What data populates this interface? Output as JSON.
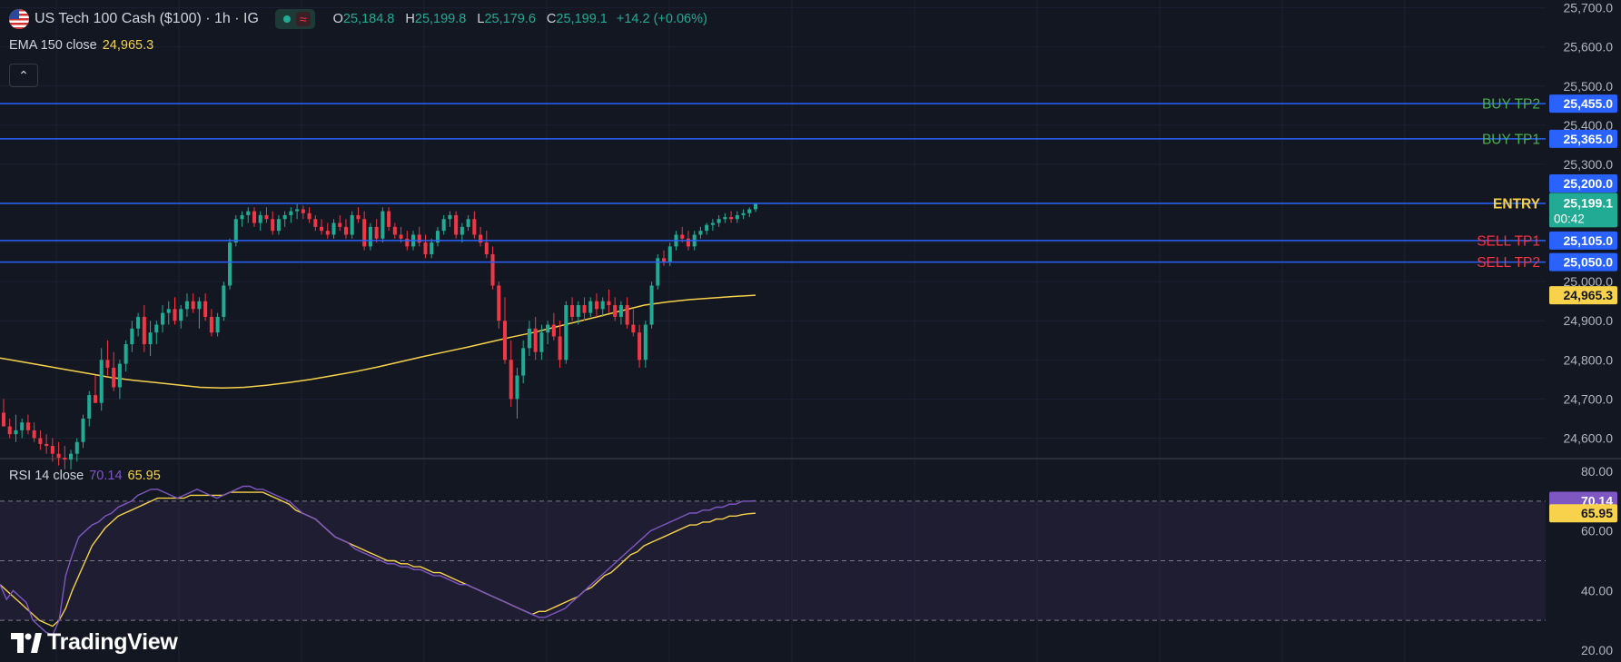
{
  "header": {
    "symbol": "US Tech 100 Cash ($100) · 1h · IG",
    "ohlc": [
      {
        "key": "O",
        "value": "25,184.8"
      },
      {
        "key": "H",
        "value": "25,199.8"
      },
      {
        "key": "L",
        "value": "25,179.6"
      },
      {
        "key": "C",
        "value": "25,199.1"
      }
    ],
    "change": "+14.2 (+0.06%)",
    "wave_icon": "≈",
    "collapse_icon": "⌃"
  },
  "ema": {
    "label": "EMA 150 close",
    "value": "24,965.3"
  },
  "rsi": {
    "label": "RSI 14 close",
    "value": "70.14",
    "ma_value": "65.95"
  },
  "brand": "TradingView",
  "colors": {
    "background": "#131722",
    "up": "#22ab94",
    "down": "#f23645",
    "ema": "#f7d24a",
    "rsi": "#7e57c2",
    "level_line": "#2962ff",
    "buy": "#4caf50",
    "sell": "#f23645",
    "entry": "#f7d24a"
  },
  "chart_data": [
    {
      "type": "candlestick",
      "timeframe": "1h",
      "ylim": [
        24550,
        25720
      ],
      "y_ticks": [
        "25,700.0",
        "25,600.0",
        "25,500.0",
        "25,400.0",
        "25,300.0",
        "25,200.0",
        "25,100.0",
        "25,000.0",
        "24,900.0",
        "24,800.0",
        "24,700.0",
        "24,600.0"
      ],
      "y_tick_values": [
        25700,
        25600,
        25500,
        25400,
        25300,
        25200,
        25100,
        25000,
        24900,
        24800,
        24700,
        24600
      ],
      "last_price": {
        "value": 25199.1,
        "label": "25,199.1",
        "countdown": "00:42"
      },
      "levels": [
        {
          "name": "BUY TP2",
          "value": 25455.0,
          "label": "25,455.0",
          "kind": "buy"
        },
        {
          "name": "BUY TP1",
          "value": 25365.0,
          "label": "25,365.0",
          "kind": "buy"
        },
        {
          "name": "ENTRY",
          "value": 25200.0,
          "label": "25,200.0",
          "kind": "entry"
        },
        {
          "name": "SELL TP1",
          "value": 25105.0,
          "label": "25,105.0",
          "kind": "sell"
        },
        {
          "name": "SELL TP2",
          "value": 25050.0,
          "label": "25,050.0",
          "kind": "sell"
        }
      ],
      "ema_last": {
        "value": 24965.3,
        "label": "24,965.3"
      },
      "candles": [
        [
          24665,
          24700,
          24640,
          24630
        ],
        [
          24630,
          24650,
          24600,
          24610
        ],
        [
          24610,
          24660,
          24590,
          24620
        ],
        [
          24620,
          24650,
          24600,
          24640
        ],
        [
          24640,
          24660,
          24610,
          24620
        ],
        [
          24620,
          24640,
          24590,
          24600
        ],
        [
          24600,
          24620,
          24570,
          24585
        ],
        [
          24585,
          24610,
          24560,
          24580
        ],
        [
          24580,
          24600,
          24540,
          24560
        ],
        [
          24560,
          24590,
          24530,
          24550
        ],
        [
          24550,
          24580,
          24520,
          24545
        ],
        [
          24545,
          24570,
          24520,
          24560
        ],
        [
          24560,
          24600,
          24540,
          24590
        ],
        [
          24590,
          24660,
          24575,
          24650
        ],
        [
          24650,
          24720,
          24630,
          24710
        ],
        [
          24710,
          24760,
          24690,
          24690
        ],
        [
          24690,
          24830,
          24670,
          24800
        ],
        [
          24800,
          24850,
          24760,
          24780
        ],
        [
          24780,
          24820,
          24720,
          24730
        ],
        [
          24730,
          24800,
          24700,
          24790
        ],
        [
          24790,
          24850,
          24770,
          24840
        ],
        [
          24840,
          24900,
          24820,
          24880
        ],
        [
          24880,
          24920,
          24860,
          24910
        ],
        [
          24910,
          24940,
          24820,
          24840
        ],
        [
          24840,
          24900,
          24810,
          24870
        ],
        [
          24870,
          24900,
          24840,
          24890
        ],
        [
          24890,
          24940,
          24870,
          24920
        ],
        [
          24920,
          24950,
          24890,
          24930
        ],
        [
          24930,
          24960,
          24890,
          24900
        ],
        [
          24900,
          24940,
          24880,
          24930
        ],
        [
          24930,
          24970,
          24910,
          24950
        ],
        [
          24950,
          24970,
          24920,
          24930
        ],
        [
          24930,
          24960,
          24880,
          24950
        ],
        [
          24950,
          24970,
          24900,
          24910
        ],
        [
          24910,
          24930,
          24860,
          24870
        ],
        [
          24870,
          24920,
          24860,
          24910
        ],
        [
          24910,
          25000,
          24900,
          24990
        ],
        [
          24990,
          25110,
          24980,
          25100
        ],
        [
          25100,
          25170,
          25090,
          25160
        ],
        [
          25160,
          25180,
          25140,
          25170
        ],
        [
          25170,
          25190,
          25150,
          25180
        ],
        [
          25180,
          25190,
          25140,
          25150
        ],
        [
          25150,
          25180,
          25130,
          25170
        ],
        [
          25170,
          25190,
          25150,
          25160
        ],
        [
          25160,
          25180,
          25120,
          25130
        ],
        [
          25130,
          25170,
          25120,
          25160
        ],
        [
          25160,
          25180,
          25140,
          25170
        ],
        [
          25170,
          25190,
          25150,
          25180
        ],
        [
          25180,
          25200,
          25160,
          25185
        ],
        [
          25185,
          25195,
          25160,
          25175
        ],
        [
          25175,
          25190,
          25150,
          25160
        ],
        [
          25160,
          25170,
          25130,
          25140
        ],
        [
          25140,
          25160,
          25120,
          25130
        ],
        [
          25130,
          25150,
          25110,
          25120
        ],
        [
          25120,
          25160,
          25110,
          25150
        ],
        [
          25150,
          25170,
          25130,
          25140
        ],
        [
          25140,
          25160,
          25110,
          25120
        ],
        [
          25120,
          25180,
          25110,
          25170
        ],
        [
          25170,
          25190,
          25150,
          25160
        ],
        [
          25160,
          25180,
          25080,
          25090
        ],
        [
          25090,
          25150,
          25080,
          25140
        ],
        [
          25140,
          25160,
          25100,
          25110
        ],
        [
          25110,
          25190,
          25100,
          25180
        ],
        [
          25180,
          25190,
          25130,
          25140
        ],
        [
          25140,
          25150,
          25110,
          25120
        ],
        [
          25120,
          25140,
          25100,
          25110
        ],
        [
          25110,
          25130,
          25080,
          25090
        ],
        [
          25090,
          25130,
          25080,
          25120
        ],
        [
          25120,
          25140,
          25090,
          25100
        ],
        [
          25100,
          25120,
          25060,
          25070
        ],
        [
          25070,
          25110,
          25060,
          25100
        ],
        [
          25100,
          25140,
          25090,
          25130
        ],
        [
          25130,
          25170,
          25120,
          25160
        ],
        [
          25160,
          25180,
          25140,
          25170
        ],
        [
          25170,
          25180,
          25110,
          25120
        ],
        [
          25120,
          25150,
          25100,
          25140
        ],
        [
          25140,
          25170,
          25130,
          25160
        ],
        [
          25160,
          25180,
          25110,
          25120
        ],
        [
          25120,
          25140,
          25090,
          25100
        ],
        [
          25100,
          25130,
          25060,
          25070
        ],
        [
          25070,
          25090,
          24980,
          24990
        ],
        [
          24990,
          25000,
          24880,
          24900
        ],
        [
          24900,
          24960,
          24790,
          24800
        ],
        [
          24800,
          24850,
          24680,
          24700
        ],
        [
          24700,
          24780,
          24650,
          24760
        ],
        [
          24760,
          24850,
          24740,
          24830
        ],
        [
          24830,
          24900,
          24810,
          24880
        ],
        [
          24880,
          24910,
          24800,
          24820
        ],
        [
          24820,
          24890,
          24800,
          24870
        ],
        [
          24870,
          24900,
          24840,
          24890
        ],
        [
          24890,
          24920,
          24850,
          24860
        ],
        [
          24860,
          24900,
          24780,
          24800
        ],
        [
          24800,
          24950,
          24790,
          24940
        ],
        [
          24940,
          24960,
          24900,
          24910
        ],
        [
          24910,
          24950,
          24890,
          24940
        ],
        [
          24940,
          24960,
          24900,
          24920
        ],
        [
          24920,
          24960,
          24910,
          24950
        ],
        [
          24950,
          24970,
          24910,
          24930
        ],
        [
          24930,
          24960,
          24910,
          24950
        ],
        [
          24950,
          24980,
          24920,
          24940
        ],
        [
          24940,
          24960,
          24900,
          24910
        ],
        [
          24910,
          24950,
          24890,
          24940
        ],
        [
          24940,
          24960,
          24880,
          24890
        ],
        [
          24890,
          24930,
          24860,
          24870
        ],
        [
          24870,
          24890,
          24780,
          24800
        ],
        [
          24800,
          24900,
          24780,
          24890
        ],
        [
          24890,
          25000,
          24880,
          24990
        ],
        [
          24990,
          25070,
          24980,
          25060
        ],
        [
          25060,
          25080,
          25040,
          25050
        ],
        [
          25050,
          25100,
          25040,
          25090
        ],
        [
          25090,
          25130,
          25080,
          25120
        ],
        [
          25120,
          25140,
          25100,
          25110
        ],
        [
          25110,
          25130,
          25080,
          25090
        ],
        [
          25090,
          25130,
          25080,
          25120
        ],
        [
          25120,
          25140,
          25110,
          25130
        ],
        [
          25130,
          25150,
          25120,
          25145
        ],
        [
          25145,
          25160,
          25130,
          25150
        ],
        [
          25150,
          25170,
          25140,
          25160
        ],
        [
          25160,
          25175,
          25150,
          25165
        ],
        [
          25165,
          25180,
          25150,
          25160
        ],
        [
          25160,
          25180,
          25150,
          25170
        ],
        [
          25170,
          25185,
          25160,
          25175
        ],
        [
          25175,
          25190,
          25165,
          25185
        ],
        [
          25185,
          25200,
          25178,
          25199.1
        ]
      ],
      "ema150": [
        24805,
        24795,
        24785,
        24775,
        24765,
        24755,
        24748,
        24742,
        24736,
        24730,
        24728,
        24730,
        24735,
        24742,
        24750,
        24760,
        24770,
        24782,
        24795,
        24808,
        24820,
        24832,
        24845,
        24858,
        24870,
        24884,
        24898,
        24912,
        24926,
        24940,
        24948,
        24954,
        24958,
        24962,
        24965.3
      ]
    },
    {
      "type": "line",
      "name": "RSI 14 close",
      "ylim": [
        16,
        84
      ],
      "y_ticks": [
        "80.00",
        "60.00",
        "40.00",
        "20.00"
      ],
      "y_tick_values": [
        80,
        60,
        40,
        20
      ],
      "bands": [
        70,
        50,
        30
      ],
      "series": [
        {
          "key": "rsi",
          "values": [
            42,
            37,
            40,
            38,
            36,
            30,
            28,
            26,
            25,
            30,
            45,
            52,
            58,
            60,
            62,
            63,
            65,
            66,
            68,
            69,
            70,
            72,
            73,
            74,
            74,
            73,
            72,
            71,
            72,
            73,
            74,
            73,
            72,
            71,
            72,
            73,
            74,
            75,
            75,
            74,
            74,
            73,
            72,
            71,
            70,
            68,
            66,
            65,
            64,
            62,
            60,
            58,
            57,
            56,
            54,
            53,
            52,
            51,
            50,
            49,
            49,
            48,
            48,
            47,
            47,
            46,
            45,
            45,
            44,
            43,
            42,
            42,
            41,
            40,
            39,
            38,
            37,
            36,
            35,
            34,
            33,
            32,
            31,
            31,
            32,
            33,
            34,
            36,
            38,
            40,
            42,
            44,
            46,
            48,
            50,
            52,
            54,
            56,
            58,
            60,
            61,
            62,
            63,
            64,
            65,
            66,
            66,
            67,
            67,
            68,
            68,
            69,
            69,
            70,
            70,
            70.14
          ]
        },
        {
          "key": "rsi_ma",
          "values": [
            42,
            40,
            38,
            36,
            34,
            32,
            30,
            29,
            28,
            30,
            34,
            40,
            45,
            50,
            55,
            58,
            61,
            63,
            65,
            66,
            67,
            68,
            69,
            70,
            71,
            71,
            71,
            71,
            71,
            72,
            72,
            72,
            72,
            72,
            72,
            73,
            73,
            73,
            73,
            73,
            73,
            72,
            71,
            70,
            69,
            67,
            66,
            65,
            64,
            62,
            60,
            58,
            57,
            56,
            55,
            54,
            53,
            52,
            51,
            50,
            50,
            49,
            49,
            48,
            48,
            47,
            46,
            46,
            45,
            44,
            43,
            42,
            41,
            40,
            39,
            38,
            37,
            36,
            35,
            34,
            33,
            32,
            33,
            33,
            34,
            35,
            36,
            37,
            38,
            40,
            41,
            43,
            45,
            46,
            48,
            50,
            52,
            53,
            55,
            56,
            57,
            58,
            59,
            60,
            61,
            62,
            62,
            63,
            63,
            64,
            64,
            65,
            65,
            65.5,
            65.8,
            65.95
          ]
        }
      ]
    }
  ]
}
